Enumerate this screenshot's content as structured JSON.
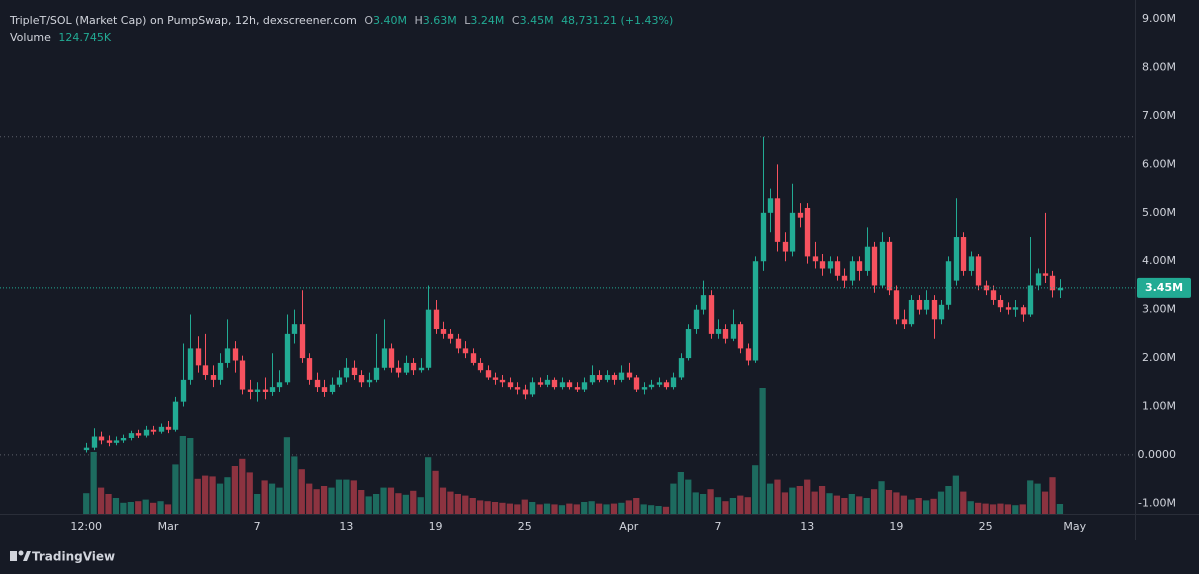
{
  "legend": {
    "title": "TripleT/SOL (Market Cap) on PumpSwap, 12h, dexscreener.com",
    "ohlc": [
      {
        "key": "O",
        "value": "3.40M"
      },
      {
        "key": "H",
        "value": "3.63M"
      },
      {
        "key": "L",
        "value": "3.24M"
      },
      {
        "key": "C",
        "value": "3.45M"
      }
    ],
    "change": "48,731.21 (+1.43%)",
    "volume_key": "Volume",
    "volume_value": "124.745K"
  },
  "branding": "TradingView",
  "chart_data": {
    "type": "candlestick",
    "up_color": "#22ab94",
    "down_color": "#f7525f",
    "volume_up_color": "#1d6b5f",
    "volume_down_color": "#8c3340",
    "last_price_label": "3.45M",
    "xlim": [
      -11.6,
      141.1
    ],
    "xticks": [
      {
        "value": 0,
        "label": "12:00"
      },
      {
        "value": 11,
        "label": "Mar"
      },
      {
        "value": 23,
        "label": "7"
      },
      {
        "value": 35,
        "label": "13"
      },
      {
        "value": 47,
        "label": "19"
      },
      {
        "value": 59,
        "label": "25"
      },
      {
        "value": 73,
        "label": "Apr"
      },
      {
        "value": 85,
        "label": "7"
      },
      {
        "value": 97,
        "label": "13"
      },
      {
        "value": 109,
        "label": "19"
      },
      {
        "value": 121,
        "label": "25"
      },
      {
        "value": 133,
        "label": "May"
      }
    ],
    "ylim": [
      -1.22,
      9.23
    ],
    "yticks": [
      {
        "value": 9,
        "label": "9.00M"
      },
      {
        "value": 8,
        "label": "8.00M"
      },
      {
        "value": 7,
        "label": "7.00M"
      },
      {
        "value": 6,
        "label": "6.00M"
      },
      {
        "value": 5,
        "label": "5.00M"
      },
      {
        "value": 4,
        "label": "4.00M"
      },
      {
        "value": 3,
        "label": "3.00M"
      },
      {
        "value": 2,
        "label": "2.00M"
      },
      {
        "value": 1,
        "label": "1.00M"
      },
      {
        "value": 0,
        "label": "0.0000"
      },
      {
        "value": -1,
        "label": "-1.00M"
      }
    ],
    "volume_ylim": [
      0,
      6325
    ],
    "open": [
      0.1,
      0.15,
      0.38,
      0.3,
      0.25,
      0.3,
      0.35,
      0.45,
      0.4,
      0.52,
      0.48,
      0.58,
      0.52,
      1.1,
      1.55,
      2.2,
      1.85,
      1.65,
      1.55,
      1.9,
      2.2,
      1.95,
      1.35,
      1.3,
      1.35,
      1.3,
      1.4,
      1.5,
      2.5,
      2.7,
      2.0,
      1.55,
      1.4,
      1.3,
      1.45,
      1.6,
      1.8,
      1.65,
      1.5,
      1.55,
      1.8,
      2.2,
      1.8,
      1.7,
      1.9,
      1.75,
      1.8,
      3.0,
      2.6,
      2.5,
      2.4,
      2.2,
      2.1,
      1.9,
      1.75,
      1.6,
      1.55,
      1.5,
      1.4,
      1.35,
      1.25,
      1.5,
      1.45,
      1.55,
      1.4,
      1.5,
      1.4,
      1.35,
      1.5,
      1.65,
      1.55,
      1.65,
      1.55,
      1.7,
      1.6,
      1.35,
      1.4,
      1.45,
      1.5,
      1.4,
      1.6,
      2.0,
      2.6,
      3.0,
      3.3,
      2.5,
      2.6,
      2.4,
      2.7,
      2.2,
      1.95,
      4.0,
      5.0,
      5.3,
      4.4,
      4.2,
      5.0,
      5.1,
      4.1,
      4.0,
      3.85,
      4.0,
      3.7,
      3.6,
      4.0,
      3.8,
      4.3,
      3.5,
      4.4,
      3.4,
      2.8,
      2.7,
      3.2,
      3.0,
      3.2,
      2.8,
      3.1,
      3.6,
      4.5,
      3.8,
      4.1,
      3.5,
      3.4,
      3.2,
      3.05,
      3.0,
      3.05,
      2.9,
      3.5,
      3.75,
      3.7,
      3.4
    ],
    "high": [
      0.25,
      0.55,
      0.48,
      0.4,
      0.38,
      0.42,
      0.5,
      0.52,
      0.6,
      0.6,
      0.65,
      0.7,
      1.2,
      2.3,
      2.9,
      2.45,
      2.5,
      1.85,
      2.1,
      2.8,
      2.35,
      2.05,
      1.55,
      1.5,
      1.6,
      2.1,
      1.75,
      2.9,
      3.0,
      3.4,
      2.1,
      1.7,
      1.55,
      1.6,
      1.75,
      2.0,
      1.95,
      1.75,
      1.7,
      2.5,
      2.8,
      2.3,
      1.95,
      2.05,
      2.0,
      2.0,
      3.5,
      3.2,
      2.75,
      2.6,
      2.5,
      2.35,
      2.2,
      2.0,
      1.85,
      1.7,
      1.65,
      1.6,
      1.5,
      1.45,
      1.6,
      1.6,
      1.65,
      1.6,
      1.6,
      1.55,
      1.5,
      1.6,
      1.85,
      1.75,
      1.75,
      1.7,
      1.85,
      1.9,
      1.65,
      1.5,
      1.55,
      1.6,
      1.55,
      1.7,
      2.1,
      2.7,
      3.1,
      3.6,
      3.4,
      2.8,
      2.7,
      3.0,
      2.75,
      2.3,
      4.1,
      6.57,
      5.5,
      6.0,
      4.6,
      5.6,
      5.2,
      5.2,
      4.4,
      4.15,
      4.1,
      4.1,
      3.85,
      4.1,
      4.1,
      4.7,
      4.4,
      4.6,
      4.5,
      3.5,
      3.0,
      3.3,
      3.3,
      3.4,
      3.3,
      3.2,
      4.1,
      5.3,
      4.6,
      4.2,
      4.15,
      3.6,
      3.5,
      3.3,
      3.15,
      3.2,
      3.1,
      4.5,
      3.85,
      5.0,
      3.8,
      3.63
    ],
    "low": [
      0.05,
      0.1,
      0.22,
      0.18,
      0.2,
      0.25,
      0.3,
      0.35,
      0.36,
      0.42,
      0.44,
      0.45,
      0.48,
      1.0,
      1.45,
      1.7,
      1.55,
      1.4,
      1.45,
      1.8,
      1.7,
      1.25,
      1.15,
      1.1,
      1.15,
      1.22,
      1.3,
      1.45,
      2.3,
      1.9,
      1.45,
      1.3,
      1.2,
      1.25,
      1.4,
      1.5,
      1.55,
      1.4,
      1.4,
      1.5,
      1.75,
      1.7,
      1.6,
      1.65,
      1.65,
      1.7,
      1.75,
      2.5,
      2.4,
      2.3,
      2.1,
      2.0,
      1.85,
      1.7,
      1.55,
      1.45,
      1.4,
      1.35,
      1.25,
      1.15,
      1.2,
      1.4,
      1.4,
      1.35,
      1.35,
      1.35,
      1.3,
      1.3,
      1.45,
      1.5,
      1.5,
      1.45,
      1.5,
      1.55,
      1.3,
      1.25,
      1.35,
      1.4,
      1.35,
      1.35,
      1.55,
      1.95,
      2.5,
      2.9,
      2.4,
      2.4,
      2.3,
      2.35,
      2.1,
      1.85,
      1.9,
      3.8,
      4.6,
      4.2,
      4.0,
      4.1,
      4.7,
      3.95,
      3.85,
      3.7,
      3.75,
      3.6,
      3.45,
      3.5,
      3.6,
      3.7,
      3.35,
      3.45,
      3.3,
      2.7,
      2.6,
      2.65,
      2.9,
      2.9,
      2.4,
      2.7,
      3.0,
      3.5,
      3.7,
      3.7,
      3.4,
      3.3,
      3.1,
      2.95,
      2.9,
      2.85,
      2.75,
      2.85,
      3.4,
      3.55,
      3.25,
      3.24
    ],
    "close": [
      0.15,
      0.38,
      0.3,
      0.25,
      0.3,
      0.35,
      0.45,
      0.4,
      0.52,
      0.48,
      0.58,
      0.52,
      1.1,
      1.55,
      2.2,
      1.85,
      1.65,
      1.55,
      1.9,
      2.2,
      1.95,
      1.35,
      1.3,
      1.35,
      1.3,
      1.4,
      1.5,
      2.5,
      2.7,
      2.0,
      1.55,
      1.4,
      1.3,
      1.45,
      1.6,
      1.8,
      1.65,
      1.5,
      1.55,
      1.8,
      2.2,
      1.8,
      1.7,
      1.9,
      1.75,
      1.8,
      3.0,
      2.6,
      2.5,
      2.4,
      2.2,
      2.1,
      1.9,
      1.75,
      1.6,
      1.55,
      1.5,
      1.4,
      1.35,
      1.25,
      1.5,
      1.45,
      1.55,
      1.4,
      1.5,
      1.4,
      1.35,
      1.5,
      1.65,
      1.55,
      1.65,
      1.55,
      1.7,
      1.6,
      1.35,
      1.4,
      1.45,
      1.5,
      1.4,
      1.6,
      2.0,
      2.6,
      3.0,
      3.3,
      2.5,
      2.6,
      2.4,
      2.7,
      2.2,
      1.95,
      4.0,
      5.0,
      5.3,
      4.4,
      4.2,
      5.0,
      4.9,
      4.1,
      4.0,
      3.85,
      4.0,
      3.7,
      3.6,
      4.0,
      3.8,
      4.3,
      3.5,
      4.4,
      3.4,
      2.8,
      2.7,
      3.2,
      3.0,
      3.2,
      2.8,
      3.1,
      4.0,
      4.5,
      3.8,
      4.1,
      3.5,
      3.4,
      3.2,
      3.05,
      3.0,
      3.05,
      2.9,
      3.5,
      3.75,
      3.7,
      3.4,
      3.45
    ],
    "volume": [
      260,
      775,
      330,
      250,
      200,
      140,
      150,
      160,
      180,
      140,
      160,
      120,
      620,
      975,
      950,
      440,
      480,
      470,
      380,
      460,
      600,
      690,
      520,
      250,
      420,
      380,
      330,
      960,
      720,
      560,
      380,
      310,
      350,
      330,
      430,
      430,
      420,
      300,
      220,
      250,
      330,
      330,
      260,
      240,
      290,
      210,
      710,
      540,
      330,
      280,
      250,
      230,
      200,
      170,
      160,
      150,
      140,
      130,
      120,
      180,
      150,
      120,
      130,
      120,
      110,
      130,
      120,
      150,
      160,
      130,
      120,
      130,
      140,
      170,
      200,
      120,
      110,
      100,
      90,
      380,
      525,
      430,
      270,
      250,
      310,
      210,
      160,
      200,
      230,
      210,
      610,
      1575,
      380,
      430,
      270,
      330,
      350,
      430,
      280,
      350,
      260,
      230,
      200,
      250,
      220,
      200,
      310,
      410,
      300,
      270,
      230,
      180,
      200,
      170,
      190,
      280,
      350,
      480,
      280,
      160,
      140,
      130,
      120,
      130,
      120,
      110,
      120,
      420,
      380,
      280,
      460,
      124.745
    ]
  }
}
